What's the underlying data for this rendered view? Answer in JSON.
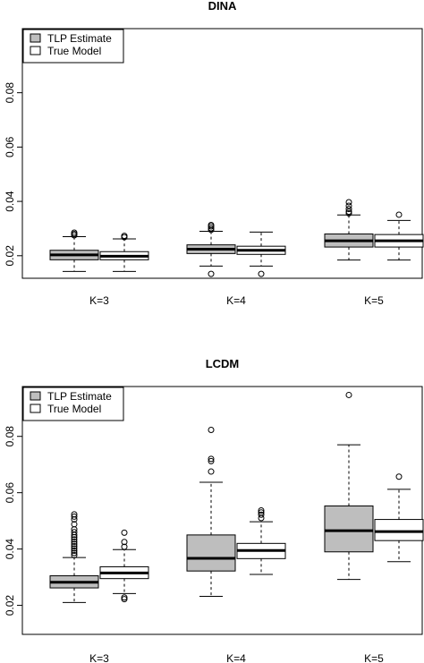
{
  "chart_data": [
    {
      "type": "box",
      "title": "DINA",
      "xlabel": "",
      "ylabel": "",
      "ylim": [
        0.0117,
        0.1036
      ],
      "yticks": [
        "0.02",
        "0.04",
        "0.06",
        "0.08"
      ],
      "categories": [
        "K=3",
        "K=4",
        "K=5"
      ],
      "legend": {
        "position": "top-left",
        "entries": [
          "TLP Estimate",
          "True Model"
        ],
        "colors": [
          "#bebebe",
          "#ffffff"
        ]
      },
      "series": [
        {
          "name": "TLP Estimate",
          "color": "#bebebe",
          "boxes": [
            {
              "whisker_low": 0.0142,
              "q1": 0.0185,
              "median": 0.0203,
              "q3": 0.022,
              "whisker_high": 0.027,
              "outliers": [
                0.0275,
                0.028,
                0.0285
              ]
            },
            {
              "whisker_low": 0.0162,
              "q1": 0.0208,
              "median": 0.0224,
              "q3": 0.024,
              "whisker_high": 0.029,
              "outliers": [
                0.0133,
                0.0295,
                0.0301,
                0.0308,
                0.0313
              ]
            },
            {
              "whisker_low": 0.0184,
              "q1": 0.0232,
              "median": 0.0255,
              "q3": 0.028,
              "whisker_high": 0.035,
              "outliers": [
                0.0356,
                0.0362,
                0.0372,
                0.0384,
                0.0397
              ]
            }
          ]
        },
        {
          "name": "True Model",
          "color": "#ffffff",
          "boxes": [
            {
              "whisker_low": 0.0142,
              "q1": 0.0185,
              "median": 0.0198,
              "q3": 0.0215,
              "whisker_high": 0.0262,
              "outliers": [
                0.0268,
                0.0273
              ]
            },
            {
              "whisker_low": 0.0162,
              "q1": 0.0205,
              "median": 0.022,
              "q3": 0.0235,
              "whisker_high": 0.0287,
              "outliers": [
                0.0133
              ]
            },
            {
              "whisker_low": 0.0184,
              "q1": 0.0232,
              "median": 0.0255,
              "q3": 0.0278,
              "whisker_high": 0.033,
              "outliers": [
                0.0351
              ]
            }
          ]
        }
      ]
    },
    {
      "type": "box",
      "title": "LCDM",
      "xlabel": "",
      "ylabel": "",
      "ylim": [
        0.0097,
        0.0977
      ],
      "yticks": [
        "0.02",
        "0.04",
        "0.06",
        "0.08"
      ],
      "categories": [
        "K=3",
        "K=4",
        "K=5"
      ],
      "legend": {
        "position": "top-left",
        "entries": [
          "TLP Estimate",
          "True Model"
        ],
        "colors": [
          "#bebebe",
          "#ffffff"
        ]
      },
      "series": [
        {
          "name": "TLP Estimate",
          "color": "#bebebe",
          "boxes": [
            {
              "whisker_low": 0.021,
              "q1": 0.0262,
              "median": 0.0282,
              "q3": 0.0305,
              "whisker_high": 0.037,
              "outliers": [
                0.0378,
                0.0386,
                0.0394,
                0.0402,
                0.041,
                0.0418,
                0.0426,
                0.0434,
                0.0442,
                0.045,
                0.046,
                0.047,
                0.0488,
                0.0505,
                0.0515,
                0.0523
              ]
            },
            {
              "whisker_low": 0.0232,
              "q1": 0.0322,
              "median": 0.0367,
              "q3": 0.045,
              "whisker_high": 0.0637,
              "outliers": [
                0.0675,
                0.0712,
                0.072,
                0.0823
              ]
            },
            {
              "whisker_low": 0.0292,
              "q1": 0.039,
              "median": 0.0465,
              "q3": 0.0553,
              "whisker_high": 0.077,
              "outliers": [
                0.0947
              ]
            }
          ]
        },
        {
          "name": "True Model",
          "color": "#ffffff",
          "boxes": [
            {
              "whisker_low": 0.0242,
              "q1": 0.0295,
              "median": 0.0315,
              "q3": 0.0337,
              "whisker_high": 0.0398,
              "outliers": [
                0.0222,
                0.0228,
                0.0408,
                0.0425,
                0.0458
              ]
            },
            {
              "whisker_low": 0.031,
              "q1": 0.0366,
              "median": 0.0395,
              "q3": 0.042,
              "whisker_high": 0.0497,
              "outliers": [
                0.051,
                0.0522,
                0.053,
                0.0537
              ]
            },
            {
              "whisker_low": 0.0355,
              "q1": 0.043,
              "median": 0.0462,
              "q3": 0.0505,
              "whisker_high": 0.0612,
              "outliers": [
                0.0657
              ]
            }
          ]
        }
      ]
    }
  ]
}
